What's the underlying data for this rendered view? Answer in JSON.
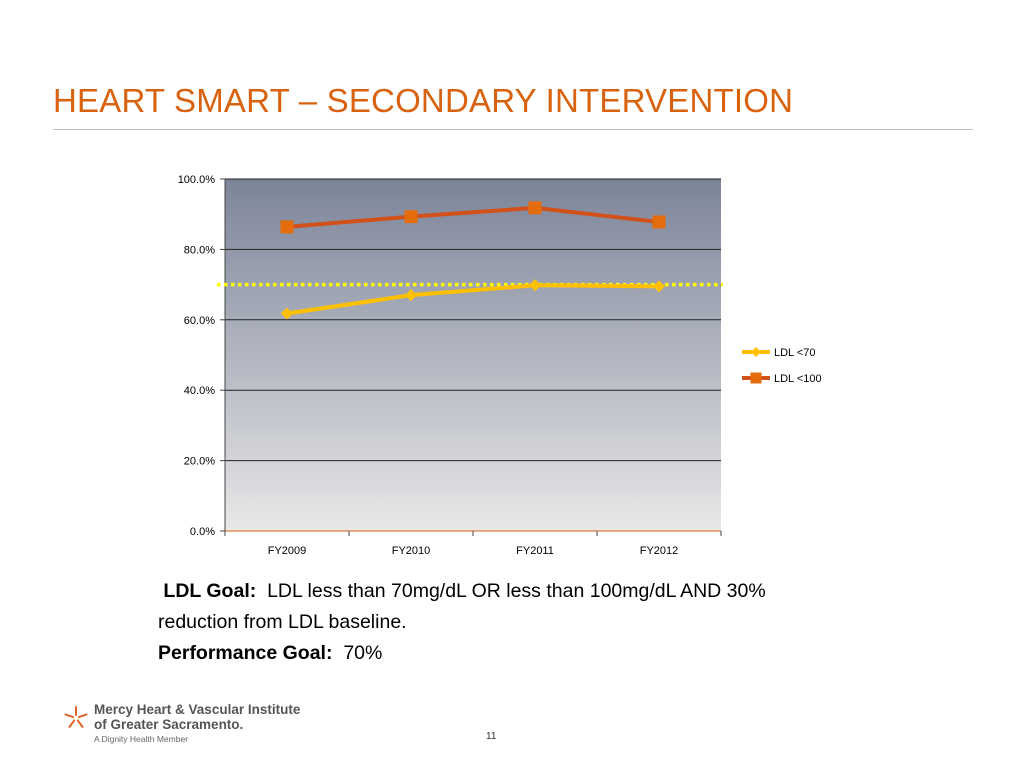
{
  "slide": {
    "title": "HEART SMART – SECONDARY INTERVENTION",
    "page_number": "11"
  },
  "description": {
    "ldl_goal_label": "LDL Goal:",
    "ldl_goal_text": "LDL less than 70mg/dL OR less than 100mg/dL AND 30% reduction from LDL baseline.",
    "performance_goal_label": "Performance Goal:",
    "performance_goal_text": "70%"
  },
  "logo": {
    "line1": "Mercy Heart & Vascular Institute",
    "line2": "of Greater Sacramento.",
    "line3": "A Dignity Health Member",
    "icon": "star-flower-icon",
    "color": "#E0622A"
  },
  "colors": {
    "title": "#D9620F",
    "ldl70": "#FFC000",
    "ldl100": "#D2501A",
    "marker100": "#E46C0A",
    "goal_line": "#FFFF00",
    "plot_top": "#7C8499",
    "plot_bottom": "#E8E8E8"
  },
  "chart_data": {
    "type": "line",
    "categories": [
      "FY2009",
      "FY2010",
      "FY2011",
      "FY2012"
    ],
    "series": [
      {
        "name": "LDL <70",
        "values": [
          61.8,
          67.0,
          69.8,
          69.5
        ],
        "marker": "diamond"
      },
      {
        "name": "LDL <100",
        "values": [
          86.4,
          89.3,
          91.8,
          87.8
        ],
        "marker": "square"
      }
    ],
    "reference_line": {
      "value": 70.0,
      "style": "dotted"
    },
    "ylim": [
      0,
      100
    ],
    "yticks": [
      "0.0%",
      "20.0%",
      "40.0%",
      "60.0%",
      "80.0%",
      "100.0%"
    ],
    "ytick_values": [
      0,
      20,
      40,
      60,
      80,
      100
    ],
    "grid": true,
    "legend": "right",
    "title": "",
    "xlabel": "",
    "ylabel": ""
  }
}
